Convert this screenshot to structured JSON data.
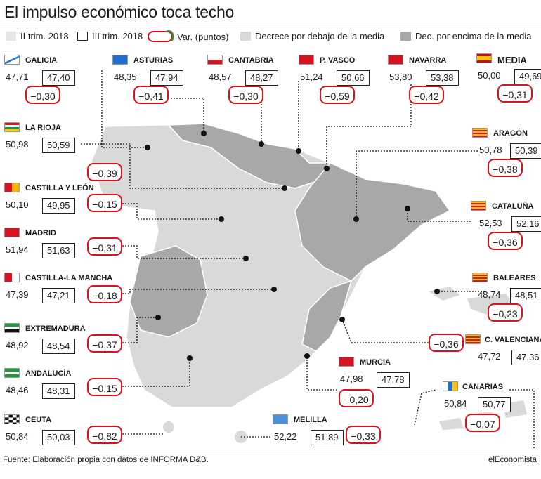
{
  "title": "El impulso económico toca techo",
  "legend": {
    "t2": "II trim. 2018",
    "t3": "III trim. 2018",
    "var": "Var. (puntos)",
    "below": "Decrece por debajo de la media",
    "above": "Dec. por encima de la media"
  },
  "colors": {
    "accent_red": "#d9121f",
    "accent_green": "#1a9b35",
    "below": "#d9d9d9",
    "above": "#a8a8a8"
  },
  "regions": {
    "galicia": {
      "name": "GALICIA",
      "t2": "47,71",
      "t3": "47,40",
      "var": "−0,30"
    },
    "asturias": {
      "name": "ASTURIAS",
      "t2": "48,35",
      "t3": "47,94",
      "var": "−0,41"
    },
    "cantabria": {
      "name": "CANTABRIA",
      "t2": "48,57",
      "t3": "48,27",
      "var": "−0,30"
    },
    "pvasco": {
      "name": "P. VASCO",
      "t2": "51,24",
      "t3": "50,66",
      "var": "−0,59"
    },
    "navarra": {
      "name": "NAVARRA",
      "t2": "53,80",
      "t3": "53,38",
      "var": "−0,42"
    },
    "media": {
      "name": "MEDIA",
      "t2": "50,00",
      "t3": "49,69",
      "var": "−0,31"
    },
    "rioja": {
      "name": "LA RIOJA",
      "t2": "50,98",
      "t3": "50,59",
      "var": "−0,39"
    },
    "aragon": {
      "name": "ARAGÓN",
      "t2": "50,78",
      "t3": "50,39",
      "var": "−0,38"
    },
    "cyl": {
      "name": "CASTILLA Y LEÓN",
      "t2": "50,10",
      "t3": "49,95",
      "var": "−0,15"
    },
    "cataluna": {
      "name": "CATALUÑA",
      "t2": "52,53",
      "t3": "52,16",
      "var": "−0,36"
    },
    "madrid": {
      "name": "MADRID",
      "t2": "51,94",
      "t3": "51,63",
      "var": "−0,31"
    },
    "clm": {
      "name": "CASTILLA-LA MANCHA",
      "t2": "47,39",
      "t3": "47,21",
      "var": "−0,18"
    },
    "baleares": {
      "name": "BALEARES",
      "t2": "48,74",
      "t3": "48,51",
      "var": "−0,23"
    },
    "extremadura": {
      "name": "EXTREMADURA",
      "t2": "48,92",
      "t3": "48,54",
      "var": "−0,37"
    },
    "cvalenciana": {
      "name": "C. VALENCIANA",
      "t2": "47,72",
      "t3": "47,36",
      "var": "−0,36"
    },
    "murcia": {
      "name": "MURCIA",
      "t2": "47,98",
      "t3": "47,78",
      "var": "−0,20"
    },
    "andalucia": {
      "name": "ANDALUCÍA",
      "t2": "48,46",
      "t3": "48,31",
      "var": "−0,15"
    },
    "canarias": {
      "name": "CANARIAS",
      "t2": "50,84",
      "t3": "50,77",
      "var": "−0,07"
    },
    "ceuta": {
      "name": "CEUTA",
      "t2": "50,84",
      "t3": "50,03",
      "var": "−0,82"
    },
    "melilla": {
      "name": "MELILLA",
      "t2": "52,22",
      "t3": "51,89",
      "var": "−0,33"
    }
  },
  "footer": "Fuente: Elaboración propia con datos de INFORMA D&B.",
  "brand": "elEconomista"
}
